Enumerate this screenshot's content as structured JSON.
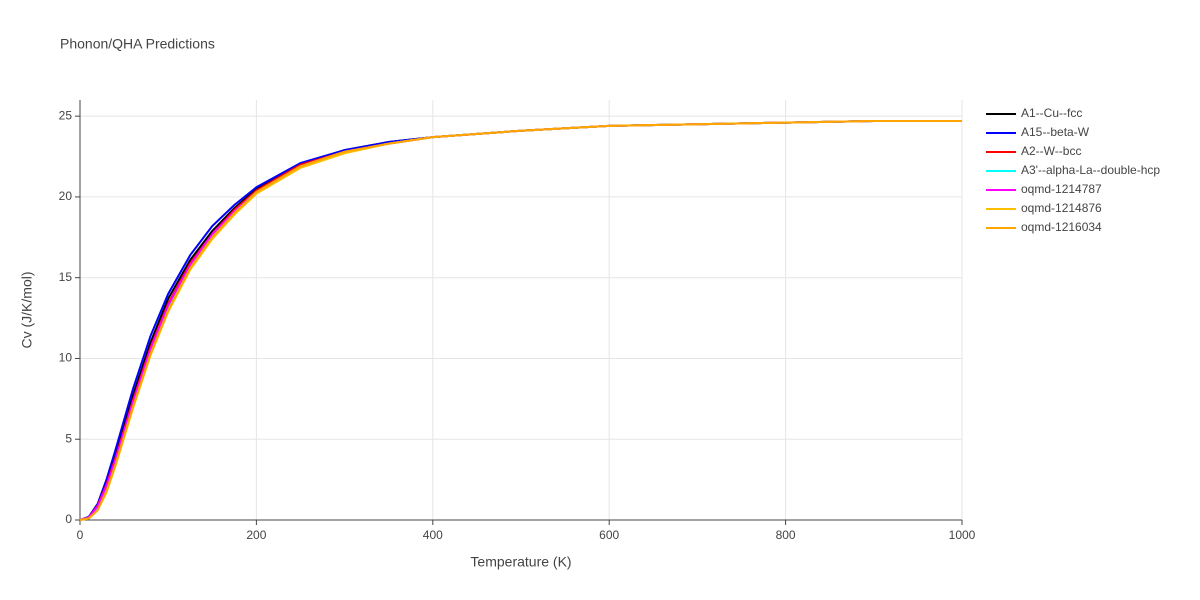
{
  "chart_data": {
    "type": "line",
    "title": "Phonon/QHA Predictions",
    "x_label": "Temperature (K)",
    "y_label": "Cv (J/K/mol)",
    "x": [
      0,
      10,
      20,
      30,
      40,
      50,
      60,
      80,
      100,
      125,
      150,
      175,
      200,
      250,
      300,
      350,
      400,
      500,
      600,
      700,
      800,
      900,
      1000
    ],
    "series": [
      {
        "name": "A1--Cu--fcc",
        "color": "#000000",
        "values": [
          0,
          0.15,
          0.85,
          2.2,
          3.9,
          5.8,
          7.7,
          11.0,
          13.7,
          16.1,
          17.9,
          19.3,
          20.5,
          22.0,
          22.9,
          23.4,
          23.7,
          24.1,
          24.4,
          24.5,
          24.6,
          24.7,
          24.7
        ]
      },
      {
        "name": "A15--beta-W",
        "color": "#0000ff",
        "values": [
          0,
          0.2,
          1.0,
          2.5,
          4.3,
          6.2,
          8.1,
          11.4,
          14.0,
          16.4,
          18.2,
          19.5,
          20.6,
          22.1,
          22.9,
          23.4,
          23.7,
          24.1,
          24.4,
          24.5,
          24.6,
          24.7,
          24.7
        ]
      },
      {
        "name": "A2--W--bcc",
        "color": "#ff0000",
        "values": [
          0,
          0.15,
          0.9,
          2.2,
          3.8,
          5.6,
          7.4,
          10.7,
          13.4,
          15.9,
          17.7,
          19.2,
          20.4,
          22.0,
          22.8,
          23.3,
          23.7,
          24.1,
          24.4,
          24.5,
          24.6,
          24.7,
          24.7
        ]
      },
      {
        "name": "A3'--alpha-La--double-hcp",
        "color": "#00ffff",
        "values": [
          0,
          0.1,
          0.7,
          1.9,
          3.5,
          5.3,
          7.1,
          10.4,
          13.1,
          15.7,
          17.6,
          19.1,
          20.3,
          21.9,
          22.8,
          23.3,
          23.7,
          24.1,
          24.4,
          24.5,
          24.6,
          24.7,
          24.7
        ]
      },
      {
        "name": "oqmd-1214787",
        "color": "#ff00ff",
        "values": [
          0,
          0.15,
          0.85,
          2.1,
          3.7,
          5.5,
          7.3,
          10.6,
          13.3,
          15.8,
          17.7,
          19.1,
          20.3,
          21.9,
          22.8,
          23.3,
          23.7,
          24.1,
          24.4,
          24.5,
          24.6,
          24.7,
          24.7
        ]
      },
      {
        "name": "oqmd-1214876",
        "color": "#ffbf00",
        "values": [
          0,
          0.1,
          0.6,
          1.7,
          3.3,
          5.1,
          6.9,
          10.2,
          12.9,
          15.5,
          17.4,
          18.9,
          20.2,
          21.8,
          22.7,
          23.3,
          23.7,
          24.1,
          24.4,
          24.5,
          24.6,
          24.7,
          24.7
        ]
      },
      {
        "name": "oqmd-1216034",
        "color": "#ffa500",
        "values": [
          0,
          0.1,
          0.6,
          1.8,
          3.4,
          5.2,
          7.0,
          10.3,
          13.0,
          15.6,
          17.5,
          19.0,
          20.3,
          21.9,
          22.8,
          23.3,
          23.7,
          24.1,
          24.4,
          24.5,
          24.6,
          24.7,
          24.7
        ]
      }
    ],
    "xlim": [
      0,
      1000
    ],
    "xticks": [
      0,
      200,
      400,
      600,
      800,
      1000
    ],
    "ylim": [
      0,
      26
    ],
    "yticks": [
      0,
      5,
      10,
      15,
      20,
      25
    ],
    "grid": true,
    "legend": "right"
  }
}
